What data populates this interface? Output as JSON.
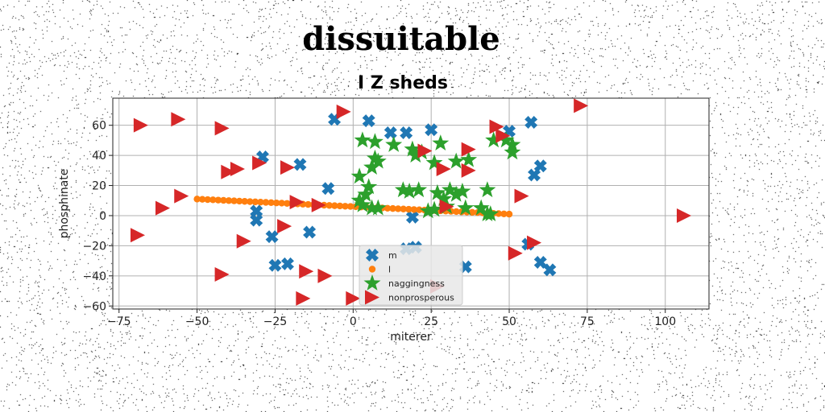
{
  "title": "dissuitable",
  "chart_data": {
    "type": "scatter",
    "title": "I Z sheds",
    "xlabel": "miterer",
    "ylabel": "phosphinate",
    "xlim": [
      -77,
      114
    ],
    "ylim": [
      -62,
      78
    ],
    "xticks": [
      -75,
      -50,
      -25,
      0,
      25,
      50,
      75,
      100
    ],
    "yticks": [
      -60,
      -40,
      -20,
      0,
      20,
      40,
      60
    ],
    "xtick_labels": [
      "−75",
      "−50",
      "−25",
      "0",
      "25",
      "50",
      "75",
      "100"
    ],
    "ytick_labels": [
      "−60",
      "−40",
      "−20",
      "0",
      "20",
      "40",
      "60"
    ],
    "grid": true,
    "legend": "bottom-center",
    "series": [
      {
        "name": "m",
        "marker": "X",
        "color": "#1f77b4",
        "points": [
          [
            -29,
            39
          ],
          [
            -17,
            34
          ],
          [
            -8,
            18
          ],
          [
            -31,
            3
          ],
          [
            -31,
            -3
          ],
          [
            -26,
            -14
          ],
          [
            -14,
            -11
          ],
          [
            -25,
            -33
          ],
          [
            -21,
            -32
          ],
          [
            -6,
            64
          ],
          [
            5,
            63
          ],
          [
            12,
            55
          ],
          [
            17,
            55
          ],
          [
            25,
            57
          ],
          [
            19,
            -1
          ],
          [
            17,
            -22
          ],
          [
            20,
            -21
          ],
          [
            36,
            -34
          ],
          [
            57,
            62
          ],
          [
            50,
            56
          ],
          [
            58,
            27
          ],
          [
            60,
            33
          ],
          [
            56,
            -19
          ],
          [
            60,
            -31
          ],
          [
            63,
            -36
          ]
        ]
      },
      {
        "name": "l",
        "marker": "o",
        "color": "#ff7f0e",
        "line": {
          "x": [
            -50,
            50
          ],
          "y": [
            11,
            1
          ],
          "count": 60
        }
      },
      {
        "name": "naggingness",
        "marker": "*",
        "color": "#2ca02c",
        "points": [
          [
            3,
            50
          ],
          [
            7,
            49
          ],
          [
            13,
            47
          ],
          [
            19,
            44
          ],
          [
            22,
            42
          ],
          [
            28,
            48
          ],
          [
            2,
            26
          ],
          [
            6,
            32
          ],
          [
            7,
            38
          ],
          [
            8,
            36
          ],
          [
            5,
            19
          ],
          [
            4,
            14
          ],
          [
            2,
            10
          ],
          [
            3,
            7
          ],
          [
            6,
            5
          ],
          [
            8,
            5
          ],
          [
            16,
            17
          ],
          [
            18,
            16
          ],
          [
            21,
            17
          ],
          [
            27,
            15
          ],
          [
            29,
            11
          ],
          [
            31,
            17
          ],
          [
            33,
            14
          ],
          [
            35,
            16
          ],
          [
            43,
            17
          ],
          [
            41,
            5
          ],
          [
            36,
            5
          ],
          [
            30,
            6
          ],
          [
            26,
            4
          ],
          [
            24,
            3
          ],
          [
            43,
            1
          ],
          [
            20,
            40
          ],
          [
            26,
            35
          ],
          [
            33,
            36
          ],
          [
            37,
            37
          ],
          [
            45,
            50
          ],
          [
            49,
            50
          ],
          [
            51,
            47
          ],
          [
            51,
            42
          ],
          [
            44,
            1
          ]
        ]
      },
      {
        "name": "nonprosperous",
        "marker": ">",
        "color": "#d62728",
        "points": [
          [
            -68,
            60
          ],
          [
            -56,
            64
          ],
          [
            -42,
            58
          ],
          [
            -37,
            31
          ],
          [
            -40,
            29
          ],
          [
            -30,
            35
          ],
          [
            -21,
            32
          ],
          [
            -55,
            13
          ],
          [
            -61,
            5
          ],
          [
            -69,
            -13
          ],
          [
            -35,
            -17
          ],
          [
            -22,
            -7
          ],
          [
            -18,
            9
          ],
          [
            -11,
            7
          ],
          [
            -42,
            -39
          ],
          [
            -15,
            -37
          ],
          [
            -9,
            -40
          ],
          [
            -16,
            -55
          ],
          [
            0,
            -55
          ],
          [
            -3,
            69
          ],
          [
            23,
            43
          ],
          [
            29,
            31
          ],
          [
            37,
            44
          ],
          [
            37,
            30
          ],
          [
            46,
            59
          ],
          [
            48,
            53
          ],
          [
            54,
            13
          ],
          [
            30,
            6
          ],
          [
            52,
            -25
          ],
          [
            58,
            -18
          ],
          [
            27,
            -47
          ],
          [
            73,
            73
          ],
          [
            106,
            0
          ]
        ]
      }
    ]
  }
}
